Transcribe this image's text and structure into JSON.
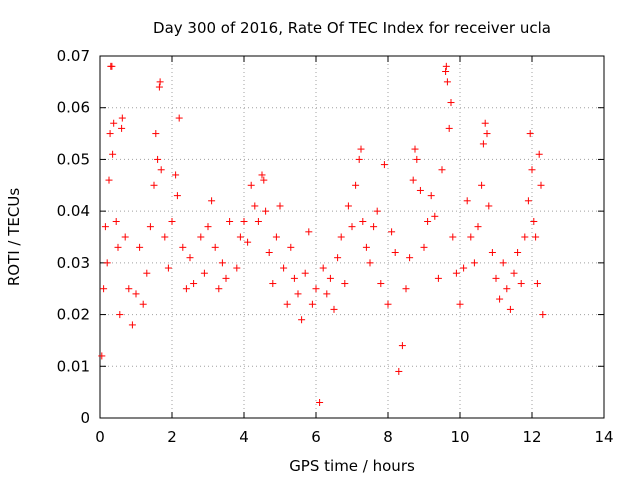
{
  "chart_data": {
    "type": "scatter",
    "title": "Day 300 of 2016, Rate Of TEC Index for receiver ucla",
    "xlabel": "GPS time / hours",
    "ylabel": "ROTI / TECUs",
    "xlim": [
      0,
      14
    ],
    "ylim": [
      0,
      0.07
    ],
    "xticks": [
      0,
      2,
      4,
      6,
      8,
      10,
      12,
      14
    ],
    "xtick_labels": [
      "0",
      "2",
      "4",
      "6",
      "8",
      "10",
      "12",
      "14"
    ],
    "yticks": [
      0,
      0.01,
      0.02,
      0.03,
      0.04,
      0.05,
      0.06,
      0.07
    ],
    "ytick_labels": [
      "0",
      "0.01",
      "0.02",
      "0.03",
      "0.04",
      "0.05",
      "0.06",
      "0.07"
    ],
    "grid": true,
    "marker": "plus",
    "color": "#ff0000",
    "series": [
      {
        "name": "ROTI",
        "points": [
          [
            0.05,
            0.012
          ],
          [
            0.1,
            0.025
          ],
          [
            0.15,
            0.037
          ],
          [
            0.2,
            0.03
          ],
          [
            0.25,
            0.046
          ],
          [
            0.28,
            0.055
          ],
          [
            0.3,
            0.068
          ],
          [
            0.33,
            0.068
          ],
          [
            0.35,
            0.051
          ],
          [
            0.38,
            0.057
          ],
          [
            0.45,
            0.038
          ],
          [
            0.5,
            0.033
          ],
          [
            0.55,
            0.02
          ],
          [
            0.6,
            0.056
          ],
          [
            0.62,
            0.058
          ],
          [
            0.7,
            0.035
          ],
          [
            0.8,
            0.025
          ],
          [
            0.9,
            0.018
          ],
          [
            1.0,
            0.024
          ],
          [
            1.1,
            0.033
          ],
          [
            1.2,
            0.022
          ],
          [
            1.3,
            0.028
          ],
          [
            1.4,
            0.037
          ],
          [
            1.5,
            0.045
          ],
          [
            1.55,
            0.055
          ],
          [
            1.6,
            0.05
          ],
          [
            1.65,
            0.064
          ],
          [
            1.67,
            0.065
          ],
          [
            1.7,
            0.048
          ],
          [
            1.8,
            0.035
          ],
          [
            1.9,
            0.029
          ],
          [
            2.0,
            0.038
          ],
          [
            2.1,
            0.047
          ],
          [
            2.15,
            0.043
          ],
          [
            2.2,
            0.058
          ],
          [
            2.3,
            0.033
          ],
          [
            2.4,
            0.025
          ],
          [
            2.5,
            0.031
          ],
          [
            2.6,
            0.026
          ],
          [
            2.8,
            0.035
          ],
          [
            2.9,
            0.028
          ],
          [
            3.0,
            0.037
          ],
          [
            3.1,
            0.042
          ],
          [
            3.2,
            0.033
          ],
          [
            3.3,
            0.025
          ],
          [
            3.4,
            0.03
          ],
          [
            3.5,
            0.027
          ],
          [
            3.6,
            0.038
          ],
          [
            3.8,
            0.029
          ],
          [
            3.9,
            0.035
          ],
          [
            4.0,
            0.038
          ],
          [
            4.1,
            0.034
          ],
          [
            4.2,
            0.045
          ],
          [
            4.3,
            0.041
          ],
          [
            4.4,
            0.038
          ],
          [
            4.5,
            0.047
          ],
          [
            4.55,
            0.046
          ],
          [
            4.6,
            0.04
          ],
          [
            4.7,
            0.032
          ],
          [
            4.8,
            0.026
          ],
          [
            4.9,
            0.035
          ],
          [
            5.0,
            0.041
          ],
          [
            5.1,
            0.029
          ],
          [
            5.2,
            0.022
          ],
          [
            5.3,
            0.033
          ],
          [
            5.4,
            0.027
          ],
          [
            5.5,
            0.024
          ],
          [
            5.6,
            0.019
          ],
          [
            5.7,
            0.028
          ],
          [
            5.8,
            0.036
          ],
          [
            5.9,
            0.022
          ],
          [
            6.0,
            0.025
          ],
          [
            6.1,
            0.003
          ],
          [
            6.2,
            0.029
          ],
          [
            6.3,
            0.024
          ],
          [
            6.4,
            0.027
          ],
          [
            6.5,
            0.021
          ],
          [
            6.6,
            0.031
          ],
          [
            6.7,
            0.035
          ],
          [
            6.8,
            0.026
          ],
          [
            6.9,
            0.041
          ],
          [
            7.0,
            0.037
          ],
          [
            7.1,
            0.045
          ],
          [
            7.2,
            0.05
          ],
          [
            7.25,
            0.052
          ],
          [
            7.3,
            0.038
          ],
          [
            7.4,
            0.033
          ],
          [
            7.5,
            0.03
          ],
          [
            7.6,
            0.037
          ],
          [
            7.7,
            0.04
          ],
          [
            7.8,
            0.026
          ],
          [
            7.9,
            0.049
          ],
          [
            8.0,
            0.022
          ],
          [
            8.1,
            0.036
          ],
          [
            8.2,
            0.032
          ],
          [
            8.3,
            0.009
          ],
          [
            8.4,
            0.014
          ],
          [
            8.5,
            0.025
          ],
          [
            8.6,
            0.031
          ],
          [
            8.7,
            0.046
          ],
          [
            8.75,
            0.052
          ],
          [
            8.8,
            0.05
          ],
          [
            8.9,
            0.044
          ],
          [
            9.0,
            0.033
          ],
          [
            9.1,
            0.038
          ],
          [
            9.2,
            0.043
          ],
          [
            9.3,
            0.039
          ],
          [
            9.4,
            0.027
          ],
          [
            9.5,
            0.048
          ],
          [
            9.6,
            0.067
          ],
          [
            9.62,
            0.068
          ],
          [
            9.65,
            0.065
          ],
          [
            9.7,
            0.056
          ],
          [
            9.75,
            0.061
          ],
          [
            9.8,
            0.035
          ],
          [
            9.9,
            0.028
          ],
          [
            10.0,
            0.022
          ],
          [
            10.1,
            0.029
          ],
          [
            10.2,
            0.042
          ],
          [
            10.3,
            0.035
          ],
          [
            10.4,
            0.03
          ],
          [
            10.5,
            0.037
          ],
          [
            10.6,
            0.045
          ],
          [
            10.65,
            0.053
          ],
          [
            10.7,
            0.057
          ],
          [
            10.75,
            0.055
          ],
          [
            10.8,
            0.041
          ],
          [
            10.9,
            0.032
          ],
          [
            11.0,
            0.027
          ],
          [
            11.1,
            0.023
          ],
          [
            11.2,
            0.03
          ],
          [
            11.3,
            0.025
          ],
          [
            11.4,
            0.021
          ],
          [
            11.5,
            0.028
          ],
          [
            11.6,
            0.032
          ],
          [
            11.7,
            0.026
          ],
          [
            11.8,
            0.035
          ],
          [
            11.9,
            0.042
          ],
          [
            11.95,
            0.055
          ],
          [
            12.0,
            0.048
          ],
          [
            12.05,
            0.038
          ],
          [
            12.1,
            0.035
          ],
          [
            12.15,
            0.026
          ],
          [
            12.2,
            0.051
          ],
          [
            12.25,
            0.045
          ],
          [
            12.3,
            0.02
          ]
        ]
      }
    ]
  }
}
